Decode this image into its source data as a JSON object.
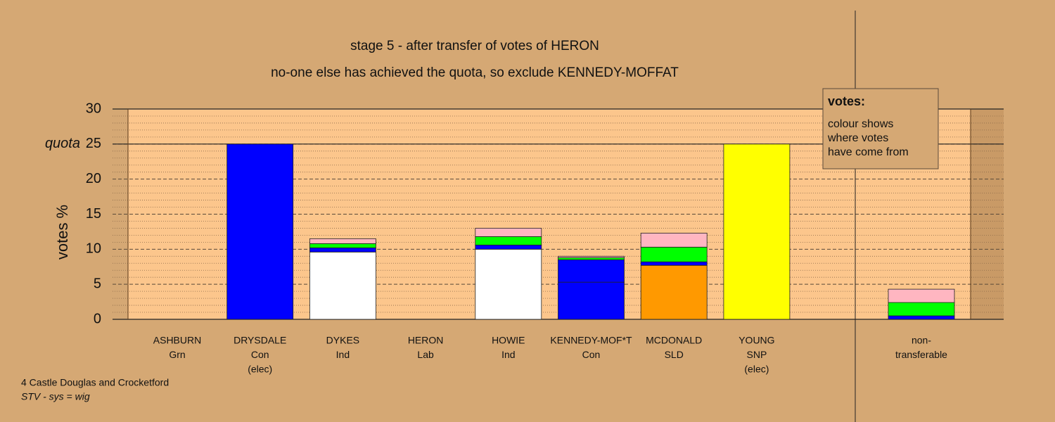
{
  "chart_data": {
    "type": "bar",
    "stacked": true,
    "title": "stage 5 - after transfer of votes of HERON",
    "subtitle": "no-one else has achieved the quota, so exclude KENNEDY-MOFFAT",
    "ylabel": "votes %",
    "categories": [
      [
        "ASHBURN",
        "Grn"
      ],
      [
        "DRYSDALE",
        "Con",
        "(elec)"
      ],
      [
        "DYKES",
        "Ind"
      ],
      [
        "HERON",
        "Lab"
      ],
      [
        "HOWIE",
        "Ind"
      ],
      [
        "KENNEDY-MOF*T",
        "Con"
      ],
      [
        "MCDONALD",
        "SLD"
      ],
      [
        "YOUNG",
        "SNP",
        "(elec)"
      ],
      [
        "non-",
        "transferable"
      ]
    ],
    "series": [
      {
        "color": "#ffffff",
        "values": [
          0,
          0,
          9.6,
          0,
          10.0,
          0,
          0,
          0,
          0
        ]
      },
      {
        "color": "#0000ff",
        "values": [
          0,
          25,
          0,
          0,
          0,
          5.3,
          0,
          0,
          0
        ]
      },
      {
        "color": "#ff9900",
        "values": [
          0,
          0,
          0,
          0,
          0,
          0,
          7.7,
          0,
          0
        ]
      },
      {
        "color": "#ffff00",
        "values": [
          0,
          0,
          0,
          0,
          0,
          0,
          0,
          25,
          0
        ]
      },
      {
        "color": "#0000ff",
        "values": [
          0,
          0,
          0.6,
          0,
          0.6,
          3.2,
          0.5,
          0,
          0.5
        ]
      },
      {
        "color": "#00ff00",
        "values": [
          0,
          0,
          0.6,
          0,
          1.2,
          0.3,
          2.1,
          0,
          1.9
        ]
      },
      {
        "color": "#ffb6c1",
        "values": [
          0,
          0,
          0.7,
          0,
          1.2,
          0.2,
          2.0,
          0,
          1.9
        ]
      }
    ],
    "ylim": [
      0,
      30
    ],
    "yticks": [
      0,
      5,
      10,
      15,
      20,
      25,
      30
    ],
    "quota": 25,
    "quota_label": "quota",
    "grid": true,
    "legend": {
      "title": "votes:",
      "lines": [
        "colour shows",
        "where votes",
        "have come from"
      ]
    },
    "notes": [
      "4 Castle Douglas and Crocketford",
      "STV - sys = wig"
    ]
  }
}
